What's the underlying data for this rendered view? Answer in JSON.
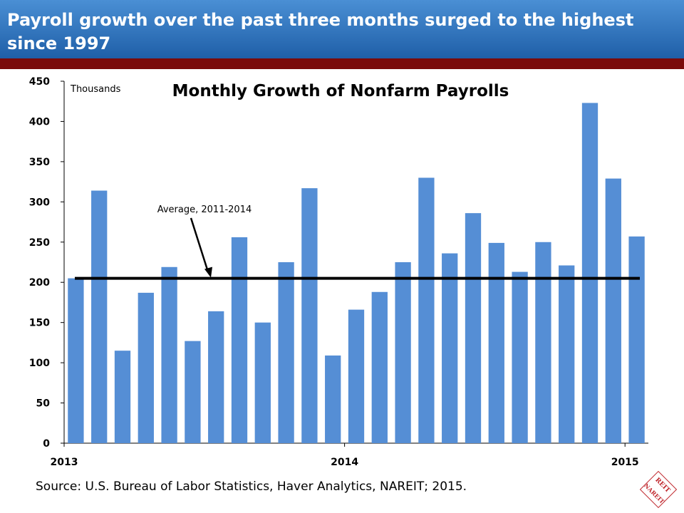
{
  "header": {
    "title": "Payroll growth over the past three months surged to the highest since 1997"
  },
  "chart_data": {
    "type": "bar",
    "title": "Monthly Growth of Nonfarm Payrolls",
    "unit_label": "Thousands",
    "ylim": [
      0,
      450
    ],
    "yticks": [
      0,
      50,
      100,
      150,
      200,
      250,
      300,
      350,
      400,
      450
    ],
    "x_tick_labels": [
      {
        "label": "2013",
        "index": 0
      },
      {
        "label": "2014",
        "index": 12
      },
      {
        "label": "2015",
        "index": 24
      }
    ],
    "categories": [
      "2013-01",
      "2013-02",
      "2013-03",
      "2013-04",
      "2013-05",
      "2013-06",
      "2013-07",
      "2013-08",
      "2013-09",
      "2013-10",
      "2013-11",
      "2013-12",
      "2014-01",
      "2014-02",
      "2014-03",
      "2014-04",
      "2014-05",
      "2014-06",
      "2014-07",
      "2014-08",
      "2014-09",
      "2014-10",
      "2014-11",
      "2014-12",
      "2015-01"
    ],
    "values": [
      205,
      314,
      115,
      187,
      219,
      127,
      164,
      256,
      150,
      225,
      317,
      109,
      166,
      188,
      225,
      330,
      236,
      286,
      249,
      213,
      250,
      221,
      423,
      329,
      257
    ],
    "bar_color": "#558ed5",
    "reference_line": {
      "value": 205,
      "label": "Average, 2011-2014",
      "color": "#000000"
    },
    "grid": false
  },
  "source": "Source: U.S. Bureau of Labor Statistics, Haver Analytics, NAREIT; 2015.",
  "logo": {
    "text": "REIT NAREIT",
    "color": "#c0272d"
  }
}
